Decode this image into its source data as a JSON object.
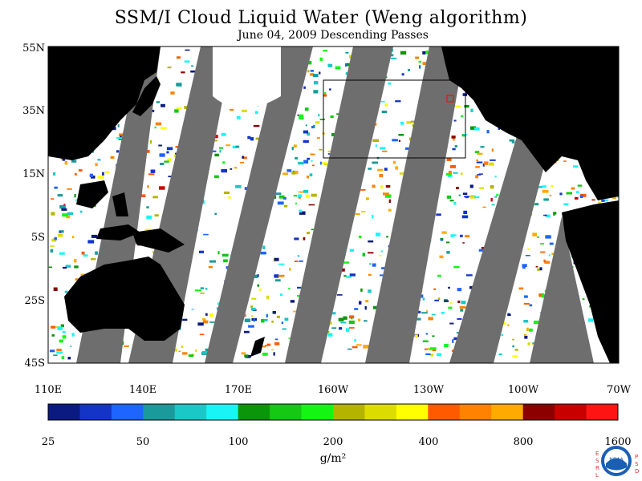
{
  "title": "SSM/I Cloud Liquid Water (Weng algorithm)",
  "subtitle": "June 04, 2009  Descending Passes",
  "lat_labels": [
    "55N",
    "35N",
    "15N",
    "5S",
    "25S",
    "45S"
  ],
  "lon_labels": [
    "110E",
    "140E",
    "170E",
    "160W",
    "130W",
    "100W",
    "70W"
  ],
  "colorbar": {
    "colors": [
      "#0a1a80",
      "#1434c8",
      "#1e64ff",
      "#1a9a9a",
      "#1ac8c8",
      "#19f5f5",
      "#0a960a",
      "#14c814",
      "#14f514",
      "#b4b400",
      "#dcdc00",
      "#ffff00",
      "#ff5a00",
      "#ff8200",
      "#ffaa00",
      "#8c0000",
      "#c80000",
      "#ff1414"
    ],
    "tick_labels": [
      "25",
      "50",
      "100",
      "200",
      "400",
      "800",
      "1600"
    ],
    "unit": "g/m²"
  },
  "logo": {
    "left_letters": [
      "E",
      "S",
      "R",
      "L"
    ],
    "right_letters": [
      "P",
      "S",
      "D"
    ],
    "center": "NOAA"
  }
}
